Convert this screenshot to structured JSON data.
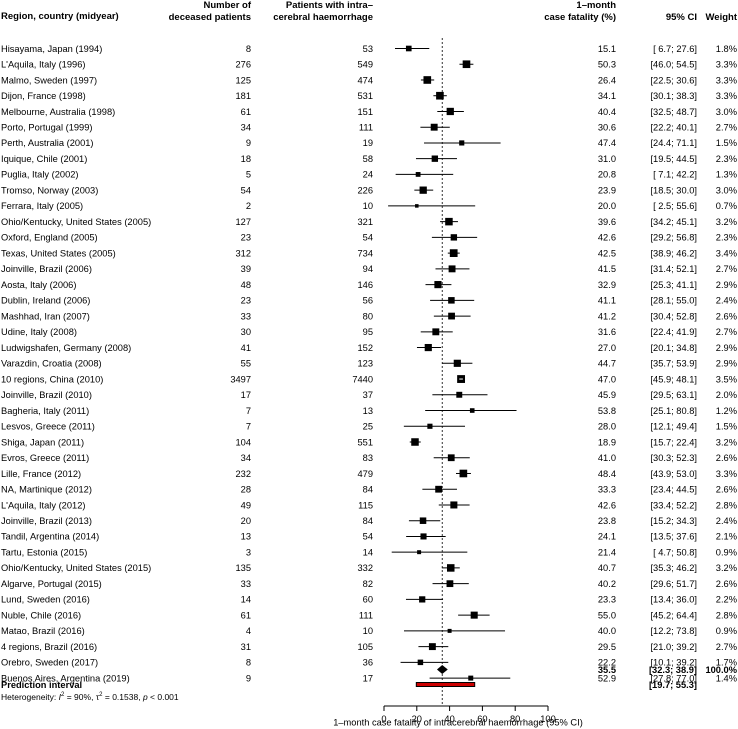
{
  "headers": {
    "study": "Region, country (midyear)",
    "deceased_1": "Number of",
    "deceased_2": "deceased patients",
    "patients_1": "Patients with intra–",
    "patients_2": "cerebral haemorrhage",
    "fatality_1": "1–month",
    "fatality_2": "case fatality (%)",
    "ci": "95% CI",
    "weight": "Weight"
  },
  "chart_data": {
    "type": "forest",
    "xlabel": "1–month case fatality of intracerebral haemorrhage (95% CI)",
    "xlim": [
      0,
      100
    ],
    "xticks": [
      "0",
      "20",
      "40",
      "60",
      "80",
      "100"
    ],
    "null_line": 35.5,
    "studies": [
      {
        "name": "Hisayama, Japan (1994)",
        "deceased": "8",
        "patients": "53",
        "est": 15.1,
        "lo": 6.7,
        "hi": 27.6,
        "est_t": "15.1",
        "ci_t": "[ 6.7; 27.6]",
        "weight_t": "1.8%",
        "w": 1.8
      },
      {
        "name": "L'Aquila, Italy (1996)",
        "deceased": "276",
        "patients": "549",
        "est": 50.3,
        "lo": 46.0,
        "hi": 54.5,
        "est_t": "50.3",
        "ci_t": "[46.0; 54.5]",
        "weight_t": "3.3%",
        "w": 3.3
      },
      {
        "name": "Malmo, Sweden (1997)",
        "deceased": "125",
        "patients": "474",
        "est": 26.4,
        "lo": 22.5,
        "hi": 30.6,
        "est_t": "26.4",
        "ci_t": "[22.5; 30.6]",
        "weight_t": "3.3%",
        "w": 3.3
      },
      {
        "name": "Dijon, France (1998)",
        "deceased": "181",
        "patients": "531",
        "est": 34.1,
        "lo": 30.1,
        "hi": 38.3,
        "est_t": "34.1",
        "ci_t": "[30.1; 38.3]",
        "weight_t": "3.3%",
        "w": 3.3
      },
      {
        "name": "Melbourne, Australia (1998)",
        "deceased": "61",
        "patients": "151",
        "est": 40.4,
        "lo": 32.5,
        "hi": 48.7,
        "est_t": "40.4",
        "ci_t": "[32.5; 48.7]",
        "weight_t": "3.0%",
        "w": 3.0
      },
      {
        "name": "Porto, Portugal (1999)",
        "deceased": "34",
        "patients": "111",
        "est": 30.6,
        "lo": 22.2,
        "hi": 40.1,
        "est_t": "30.6",
        "ci_t": "[22.2; 40.1]",
        "weight_t": "2.7%",
        "w": 2.7
      },
      {
        "name": "Perth, Australia (2001)",
        "deceased": "9",
        "patients": "19",
        "est": 47.4,
        "lo": 24.4,
        "hi": 71.1,
        "est_t": "47.4",
        "ci_t": "[24.4; 71.1]",
        "weight_t": "1.5%",
        "w": 1.5
      },
      {
        "name": "Iquique, Chile (2001)",
        "deceased": "18",
        "patients": "58",
        "est": 31.0,
        "lo": 19.5,
        "hi": 44.5,
        "est_t": "31.0",
        "ci_t": "[19.5; 44.5]",
        "weight_t": "2.3%",
        "w": 2.3
      },
      {
        "name": "Puglia, Italy (2002)",
        "deceased": "5",
        "patients": "24",
        "est": 20.8,
        "lo": 7.1,
        "hi": 42.2,
        "est_t": "20.8",
        "ci_t": "[ 7.1; 42.2]",
        "weight_t": "1.3%",
        "w": 1.3
      },
      {
        "name": "Tromso, Norway (2003)",
        "deceased": "54",
        "patients": "226",
        "est": 23.9,
        "lo": 18.5,
        "hi": 30.0,
        "est_t": "23.9",
        "ci_t": "[18.5; 30.0]",
        "weight_t": "3.0%",
        "w": 3.0
      },
      {
        "name": "Ferrara, Italy (2005)",
        "deceased": "2",
        "patients": "10",
        "est": 20.0,
        "lo": 2.5,
        "hi": 55.6,
        "est_t": "20.0",
        "ci_t": "[ 2.5; 55.6]",
        "weight_t": "0.7%",
        "w": 0.7
      },
      {
        "name": "Ohio/Kentucky, United States (2005)",
        "deceased": "127",
        "patients": "321",
        "est": 39.6,
        "lo": 34.2,
        "hi": 45.1,
        "est_t": "39.6",
        "ci_t": "[34.2; 45.1]",
        "weight_t": "3.2%",
        "w": 3.2
      },
      {
        "name": "Oxford, England (2005)",
        "deceased": "23",
        "patients": "54",
        "est": 42.6,
        "lo": 29.2,
        "hi": 56.8,
        "est_t": "42.6",
        "ci_t": "[29.2; 56.8]",
        "weight_t": "2.3%",
        "w": 2.3
      },
      {
        "name": "Texas, United States (2005)",
        "deceased": "312",
        "patients": "734",
        "est": 42.5,
        "lo": 38.9,
        "hi": 46.2,
        "est_t": "42.5",
        "ci_t": "[38.9; 46.2]",
        "weight_t": "3.4%",
        "w": 3.4
      },
      {
        "name": "Joinville, Brazil (2006)",
        "deceased": "39",
        "patients": "94",
        "est": 41.5,
        "lo": 31.4,
        "hi": 52.1,
        "est_t": "41.5",
        "ci_t": "[31.4; 52.1]",
        "weight_t": "2.7%",
        "w": 2.7
      },
      {
        "name": "Aosta, Italy (2006)",
        "deceased": "48",
        "patients": "146",
        "est": 32.9,
        "lo": 25.3,
        "hi": 41.1,
        "est_t": "32.9",
        "ci_t": "[25.3; 41.1]",
        "weight_t": "2.9%",
        "w": 2.9
      },
      {
        "name": "Dublin, Ireland (2006)",
        "deceased": "23",
        "patients": "56",
        "est": 41.1,
        "lo": 28.1,
        "hi": 55.0,
        "est_t": "41.1",
        "ci_t": "[28.1; 55.0]",
        "weight_t": "2.4%",
        "w": 2.4
      },
      {
        "name": "Mashhad, Iran (2007)",
        "deceased": "33",
        "patients": "80",
        "est": 41.2,
        "lo": 30.4,
        "hi": 52.8,
        "est_t": "41.2",
        "ci_t": "[30.4; 52.8]",
        "weight_t": "2.6%",
        "w": 2.6
      },
      {
        "name": "Udine, Italy (2008)",
        "deceased": "30",
        "patients": "95",
        "est": 31.6,
        "lo": 22.4,
        "hi": 41.9,
        "est_t": "31.6",
        "ci_t": "[22.4; 41.9]",
        "weight_t": "2.7%",
        "w": 2.7
      },
      {
        "name": "Ludwigshafen, Germany (2008)",
        "deceased": "41",
        "patients": "152",
        "est": 27.0,
        "lo": 20.1,
        "hi": 34.8,
        "est_t": "27.0",
        "ci_t": "[20.1; 34.8]",
        "weight_t": "2.9%",
        "w": 2.9
      },
      {
        "name": "Varazdin, Croatia (2008)",
        "deceased": "55",
        "patients": "123",
        "est": 44.7,
        "lo": 35.7,
        "hi": 53.9,
        "est_t": "44.7",
        "ci_t": "[35.7; 53.9]",
        "weight_t": "2.9%",
        "w": 2.9
      },
      {
        "name": "10 regions, China (2010)",
        "deceased": "3497",
        "patients": "7440",
        "est": 47.0,
        "lo": 45.9,
        "hi": 48.1,
        "est_t": "47.0",
        "ci_t": "[45.9; 48.1]",
        "weight_t": "3.5%",
        "w": 3.5
      },
      {
        "name": "Joinville, Brazil (2010)",
        "deceased": "17",
        "patients": "37",
        "est": 45.9,
        "lo": 29.5,
        "hi": 63.1,
        "est_t": "45.9",
        "ci_t": "[29.5; 63.1]",
        "weight_t": "2.0%",
        "w": 2.0
      },
      {
        "name": "Bagheria, Italy (2011)",
        "deceased": "7",
        "patients": "13",
        "est": 53.8,
        "lo": 25.1,
        "hi": 80.8,
        "est_t": "53.8",
        "ci_t": "[25.1; 80.8]",
        "weight_t": "1.2%",
        "w": 1.2
      },
      {
        "name": "Lesvos, Greece (2011)",
        "deceased": "7",
        "patients": "25",
        "est": 28.0,
        "lo": 12.1,
        "hi": 49.4,
        "est_t": "28.0",
        "ci_t": "[12.1; 49.4]",
        "weight_t": "1.5%",
        "w": 1.5
      },
      {
        "name": "Shiga, Japan (2011)",
        "deceased": "104",
        "patients": "551",
        "est": 18.9,
        "lo": 15.7,
        "hi": 22.4,
        "est_t": "18.9",
        "ci_t": "[15.7; 22.4]",
        "weight_t": "3.2%",
        "w": 3.2
      },
      {
        "name": "Evros, Greece (2011)",
        "deceased": "34",
        "patients": "83",
        "est": 41.0,
        "lo": 30.3,
        "hi": 52.3,
        "est_t": "41.0",
        "ci_t": "[30.3; 52.3]",
        "weight_t": "2.6%",
        "w": 2.6
      },
      {
        "name": "Lille, France (2012)",
        "deceased": "232",
        "patients": "479",
        "est": 48.4,
        "lo": 43.9,
        "hi": 53.0,
        "est_t": "48.4",
        "ci_t": "[43.9; 53.0]",
        "weight_t": "3.3%",
        "w": 3.3
      },
      {
        "name": "NA, Martinique (2012)",
        "deceased": "28",
        "patients": "84",
        "est": 33.3,
        "lo": 23.4,
        "hi": 44.5,
        "est_t": "33.3",
        "ci_t": "[23.4; 44.5]",
        "weight_t": "2.6%",
        "w": 2.6
      },
      {
        "name": "L'Aquila, Italy (2012)",
        "deceased": "49",
        "patients": "115",
        "est": 42.6,
        "lo": 33.4,
        "hi": 52.2,
        "est_t": "42.6",
        "ci_t": "[33.4; 52.2]",
        "weight_t": "2.8%",
        "w": 2.8
      },
      {
        "name": "Joinville, Brazil (2013)",
        "deceased": "20",
        "patients": "84",
        "est": 23.8,
        "lo": 15.2,
        "hi": 34.3,
        "est_t": "23.8",
        "ci_t": "[15.2; 34.3]",
        "weight_t": "2.4%",
        "w": 2.4
      },
      {
        "name": "Tandil, Argentina (2014)",
        "deceased": "13",
        "patients": "54",
        "est": 24.1,
        "lo": 13.5,
        "hi": 37.6,
        "est_t": "24.1",
        "ci_t": "[13.5; 37.6]",
        "weight_t": "2.1%",
        "w": 2.1
      },
      {
        "name": "Tartu, Estonia (2015)",
        "deceased": "3",
        "patients": "14",
        "est": 21.4,
        "lo": 4.7,
        "hi": 50.8,
        "est_t": "21.4",
        "ci_t": "[ 4.7; 50.8]",
        "weight_t": "0.9%",
        "w": 0.9
      },
      {
        "name": "Ohio/Kentucky, United States (2015)",
        "deceased": "135",
        "patients": "332",
        "est": 40.7,
        "lo": 35.3,
        "hi": 46.2,
        "est_t": "40.7",
        "ci_t": "[35.3; 46.2]",
        "weight_t": "3.2%",
        "w": 3.2
      },
      {
        "name": "Algarve, Portugal (2015)",
        "deceased": "33",
        "patients": "82",
        "est": 40.2,
        "lo": 29.6,
        "hi": 51.7,
        "est_t": "40.2",
        "ci_t": "[29.6; 51.7]",
        "weight_t": "2.6%",
        "w": 2.6
      },
      {
        "name": "Lund, Sweden (2016)",
        "deceased": "14",
        "patients": "60",
        "est": 23.3,
        "lo": 13.4,
        "hi": 36.0,
        "est_t": "23.3",
        "ci_t": "[13.4; 36.0]",
        "weight_t": "2.2%",
        "w": 2.2
      },
      {
        "name": "Nuble, Chile (2016)",
        "deceased": "61",
        "patients": "111",
        "est": 55.0,
        "lo": 45.2,
        "hi": 64.4,
        "est_t": "55.0",
        "ci_t": "[45.2; 64.4]",
        "weight_t": "2.8%",
        "w": 2.8
      },
      {
        "name": "Matao, Brazil (2016)",
        "deceased": "4",
        "patients": "10",
        "est": 40.0,
        "lo": 12.2,
        "hi": 73.8,
        "est_t": "40.0",
        "ci_t": "[12.2; 73.8]",
        "weight_t": "0.9%",
        "w": 0.9
      },
      {
        "name": "4 regions, Brazil (2016)",
        "deceased": "31",
        "patients": "105",
        "est": 29.5,
        "lo": 21.0,
        "hi": 39.2,
        "est_t": "29.5",
        "ci_t": "[21.0; 39.2]",
        "weight_t": "2.7%",
        "w": 2.7
      },
      {
        "name": "Orebro, Sweden (2017)",
        "deceased": "8",
        "patients": "36",
        "est": 22.2,
        "lo": 10.1,
        "hi": 39.2,
        "est_t": "22.2",
        "ci_t": "[10.1; 39.2]",
        "weight_t": "1.7%",
        "w": 1.7
      },
      {
        "name": "Buenos Aires, Argentina (2019)",
        "deceased": "9",
        "patients": "17",
        "est": 52.9,
        "lo": 27.8,
        "hi": 77.0,
        "est_t": "52.9",
        "ci_t": "[27.8; 77.0]",
        "weight_t": "1.4%",
        "w": 1.4
      }
    ],
    "summary": {
      "est": 35.5,
      "lo": 32.3,
      "hi": 38.9,
      "est_t": "35.5",
      "ci_t": "[32.3; 38.9]",
      "weight_t": "100.0%"
    },
    "prediction": {
      "label": "Prediction interval",
      "lo": 19.7,
      "hi": 55.3,
      "ci_t": "[19.7; 55.3]",
      "color": "#cc0000"
    },
    "heterogeneity": {
      "prefix": "Heterogeneity: ",
      "i2_label": "I",
      "i2_value": " = 90%, ",
      "tau2_label": "τ",
      "tau2_value": " = 0.1538, ",
      "p_label": "p",
      "p_value": " < 0.001"
    }
  }
}
